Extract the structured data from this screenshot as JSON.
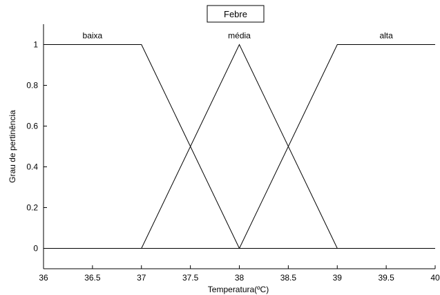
{
  "chart_data": {
    "type": "line",
    "title": "Febre",
    "xlabel": "Temperatura(ºC)",
    "ylabel": "Grau de pertinência",
    "xlim": [
      36,
      40
    ],
    "ylim": [
      -0.1,
      1.1
    ],
    "grid": false,
    "x_ticks": [
      36,
      36.5,
      37,
      37.5,
      38,
      38.5,
      39,
      39.5,
      40
    ],
    "x_tick_labels": [
      "36",
      "36.5",
      "37",
      "37.5",
      "38",
      "38.5",
      "39",
      "39.5",
      "40"
    ],
    "y_ticks": [
      0,
      0.2,
      0.4,
      0.6,
      0.8,
      1
    ],
    "y_tick_labels": [
      "0",
      "0.2",
      "0.4",
      "0.6",
      "0.8",
      "1"
    ],
    "series": [
      {
        "name": "baixa",
        "label_x": 36.5,
        "label_y": 1.03,
        "x": [
          36,
          37,
          38,
          40
        ],
        "y": [
          1,
          1,
          0,
          0
        ]
      },
      {
        "name": "média",
        "label_x": 38,
        "label_y": 1.03,
        "x": [
          36,
          37,
          38,
          39,
          40
        ],
        "y": [
          0,
          0,
          1,
          0,
          0
        ]
      },
      {
        "name": "alta",
        "label_x": 39.5,
        "label_y": 1.03,
        "x": [
          36,
          38,
          39,
          40
        ],
        "y": [
          0,
          0,
          1,
          1
        ]
      }
    ],
    "line_color": "#000000"
  }
}
